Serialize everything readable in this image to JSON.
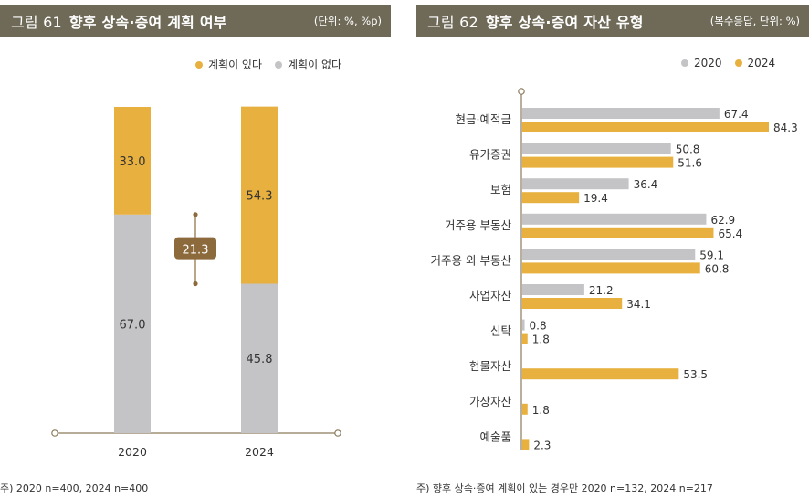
{
  "figure61": {
    "title_num": "그림 61",
    "title": "향후 상속·증여 계획 여부",
    "unit": "(단위: %, %p)",
    "legend": [
      {
        "label": "계획이 있다",
        "color": "#e8b03e"
      },
      {
        "label": "계획이 없다",
        "color": "#c4c4c6"
      }
    ],
    "footnote": "주) 2020 n=400, 2024 n=400",
    "chart_data": {
      "type": "bar",
      "stacked": true,
      "categories": [
        "2020",
        "2024"
      ],
      "series": [
        {
          "name": "계획이 없다",
          "values": [
            67.0,
            45.8
          ],
          "labels": [
            "67.0",
            "45.8"
          ],
          "color": "#c4c4c6"
        },
        {
          "name": "계획이 있다",
          "values": [
            33.0,
            54.3
          ],
          "labels": [
            "33.0",
            "54.3"
          ],
          "color": "#e8b03e"
        }
      ],
      "annotation": {
        "label": "21.3",
        "color": "#8c6a3c"
      },
      "ylim": [
        0,
        100
      ]
    }
  },
  "figure62": {
    "title_num": "그림 62",
    "title": "향후 상속·증여 자산 유형",
    "unit": "(복수응답, 단위: %)",
    "legend": [
      {
        "label": "2020",
        "color": "#c4c4c6"
      },
      {
        "label": "2024",
        "color": "#e8b03e"
      }
    ],
    "footnote": "주) 향후 상속·증여 계획이 있는 경우만 2020 n=132, 2024 n=217",
    "chart_data": {
      "type": "bar",
      "orientation": "horizontal",
      "categories": [
        "현금·예적금",
        "유가증권",
        "보험",
        "거주용 부동산",
        "거주용 외 부동산",
        "사업자산",
        "신탁",
        "현물자산",
        "가상자산",
        "예술품"
      ],
      "series": [
        {
          "name": "2020",
          "color": "#c4c4c6",
          "values": [
            67.4,
            50.8,
            36.4,
            62.9,
            59.1,
            21.2,
            0.8,
            null,
            null,
            null
          ],
          "labels": [
            "67.4",
            "50.8",
            "36.4",
            "62.9",
            "59.1",
            "21.2",
            "0.8",
            "",
            "",
            ""
          ]
        },
        {
          "name": "2024",
          "color": "#e8b03e",
          "values": [
            84.3,
            51.6,
            19.4,
            65.4,
            60.8,
            34.1,
            1.8,
            53.5,
            1.8,
            2.3
          ],
          "labels": [
            "84.3",
            "51.6",
            "19.4",
            "65.4",
            "60.8",
            "34.1",
            "1.8",
            "53.5",
            "1.8",
            "2.3"
          ]
        }
      ],
      "xlim": [
        0,
        100
      ]
    }
  },
  "colors": {
    "title_bar": "#6f6a58",
    "axis": "#8a7a5a",
    "text": "#333333"
  }
}
